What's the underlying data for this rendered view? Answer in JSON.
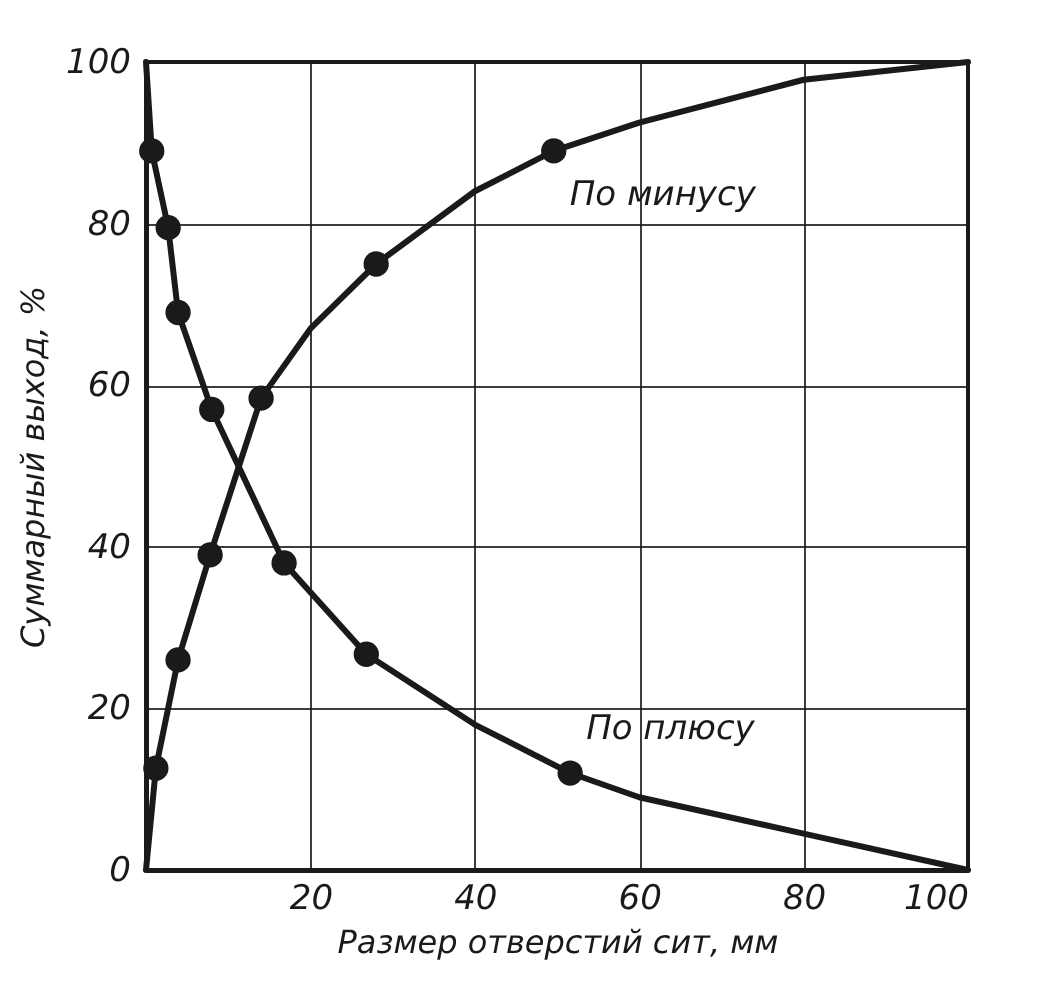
{
  "chart_data": {
    "type": "line",
    "xlabel": "Размер отверстий сит, мм",
    "ylabel": "Суммарный выход, %",
    "xlim": [
      0,
      100
    ],
    "ylim": [
      0,
      100
    ],
    "xticks": [
      20,
      40,
      60,
      80,
      100
    ],
    "yticks": [
      0,
      20,
      40,
      60,
      80,
      100
    ],
    "grid": true,
    "series": [
      {
        "name": "По минусу",
        "color": "#1a1a1a",
        "marker": "none",
        "line_style": "solid",
        "x": [
          0,
          1.2,
          3.9,
          7.8,
          14,
          20,
          28,
          40,
          49.6,
          60,
          80,
          100
        ],
        "values": [
          0,
          12.6,
          26,
          39,
          58.4,
          67,
          75,
          84,
          89,
          92.5,
          97.8,
          100
        ]
      },
      {
        "name": "По плюсу",
        "color": "#1a1a1a",
        "marker": "none",
        "line_style": "solid",
        "x": [
          0,
          0.7,
          2.7,
          3.9,
          8,
          16.8,
          26.8,
          40,
          51.6,
          60,
          80,
          100
        ],
        "values": [
          100,
          89,
          79.5,
          69,
          57,
          38,
          26.7,
          18,
          12,
          9,
          4.5,
          0
        ]
      },
      {
        "type": "scatter",
        "color": "#1a1a1a",
        "marker": "circle",
        "x": [
          1.2,
          3.9,
          7.8,
          14,
          28,
          49.6
        ],
        "values": [
          12.6,
          26,
          39,
          58.4,
          75,
          89
        ]
      },
      {
        "type": "scatter",
        "color": "#1a1a1a",
        "marker": "circle",
        "x": [
          0.7,
          2.7,
          3.9,
          8,
          16.8,
          26.8,
          51.6
        ],
        "values": [
          89,
          79.5,
          69,
          57,
          38,
          26.7,
          12
        ]
      }
    ]
  }
}
